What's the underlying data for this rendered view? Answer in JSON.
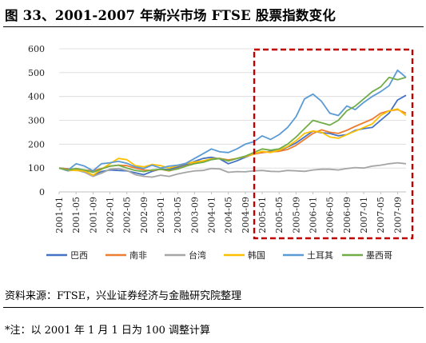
{
  "title": "图 33、2001-2007 年新兴市场 FTSE 股票指数变化",
  "source": "资料来源：FTSE，兴业证券经济与金融研究院整理",
  "note": "*注：以 2001 年 1 月 1 日为 100 调整计算",
  "colors": {
    "highlight_box": "#c00000",
    "gridline": "#d9d9d9"
  },
  "chart_data": {
    "type": "line",
    "title": "",
    "xlabel": "",
    "ylabel": "",
    "ylim": [
      0,
      600
    ],
    "yticks": [
      0,
      100,
      200,
      300,
      400,
      500,
      600
    ],
    "grid": "horizontal",
    "legend_position": "bottom",
    "x": [
      "2001-01",
      "2001-03",
      "2001-05",
      "2001-07",
      "2001-09",
      "2001-11",
      "2002-01",
      "2002-03",
      "2002-05",
      "2002-07",
      "2002-09",
      "2002-11",
      "2003-01",
      "2003-03",
      "2003-05",
      "2003-07",
      "2003-09",
      "2003-11",
      "2004-01",
      "2004-03",
      "2004-05",
      "2004-07",
      "2004-09",
      "2004-11",
      "2005-01",
      "2005-03",
      "2005-05",
      "2005-07",
      "2005-09",
      "2005-11",
      "2006-01",
      "2006-03",
      "2006-05",
      "2006-07",
      "2006-09",
      "2006-11",
      "2007-01",
      "2007-03",
      "2007-05",
      "2007-07",
      "2007-09",
      "2007-11"
    ],
    "xtick_labels": [
      "2001-01",
      "2001-05",
      "2001-09",
      "2002-01",
      "2002-05",
      "2002-09",
      "2003-01",
      "2003-05",
      "2003-09",
      "2004-01",
      "2004-05",
      "2004-09",
      "2005-01",
      "2005-05",
      "2005-09",
      "2006-01",
      "2006-05",
      "2006-09",
      "2007-01",
      "2007-05",
      "2007-09"
    ],
    "highlight_range": [
      "2005-01",
      "2007-11"
    ],
    "series": [
      {
        "name": "巴西",
        "color": "#4472c4",
        "values": [
          100,
          97,
          92,
          88,
          70,
          85,
          92,
          90,
          88,
          80,
          72,
          86,
          96,
          94,
          104,
          115,
          128,
          140,
          145,
          138,
          118,
          130,
          145,
          160,
          165,
          170,
          172,
          188,
          205,
          230,
          255,
          248,
          245,
          235,
          240,
          258,
          265,
          270,
          300,
          330,
          385,
          405
        ]
      },
      {
        "name": "南非",
        "color": "#ed7d31",
        "values": [
          100,
          96,
          95,
          92,
          88,
          98,
          108,
          112,
          110,
          100,
          92,
          90,
          95,
          88,
          98,
          110,
          120,
          128,
          138,
          140,
          134,
          140,
          148,
          158,
          165,
          168,
          170,
          178,
          195,
          220,
          245,
          260,
          250,
          245,
          258,
          275,
          290,
          305,
          330,
          340,
          345,
          330
        ]
      },
      {
        "name": "台湾",
        "color": "#a5a5a5",
        "values": [
          100,
          88,
          92,
          82,
          65,
          78,
          95,
          98,
          90,
          72,
          65,
          62,
          70,
          65,
          75,
          82,
          88,
          90,
          98,
          96,
          82,
          85,
          84,
          88,
          90,
          86,
          85,
          90,
          88,
          86,
          92,
          95,
          95,
          92,
          98,
          102,
          100,
          108,
          112,
          118,
          122,
          118
        ]
      },
      {
        "name": "韩国",
        "color": "#ffc000",
        "values": [
          100,
          92,
          90,
          88,
          70,
          95,
          118,
          140,
          135,
          110,
          105,
          115,
          110,
          100,
          110,
          120,
          125,
          130,
          138,
          140,
          130,
          140,
          148,
          160,
          170,
          165,
          175,
          190,
          215,
          245,
          255,
          250,
          230,
          225,
          240,
          255,
          270,
          285,
          320,
          340,
          348,
          320
        ]
      },
      {
        "name": "土耳其",
        "color": "#5b9bd5",
        "values": [
          100,
          90,
          118,
          108,
          88,
          118,
          122,
          128,
          120,
          105,
          98,
          112,
          100,
          108,
          112,
          120,
          140,
          160,
          180,
          168,
          165,
          180,
          200,
          210,
          235,
          220,
          240,
          270,
          315,
          390,
          410,
          380,
          330,
          320,
          360,
          345,
          375,
          400,
          420,
          445,
          510,
          480
        ]
      },
      {
        "name": "墨西哥",
        "color": "#70ad47",
        "values": [
          100,
          92,
          98,
          92,
          82,
          96,
          108,
          112,
          100,
          90,
          85,
          92,
          95,
          90,
          96,
          108,
          118,
          124,
          135,
          140,
          130,
          140,
          150,
          165,
          180,
          175,
          180,
          200,
          230,
          265,
          300,
          290,
          280,
          300,
          340,
          360,
          390,
          420,
          440,
          480,
          470,
          480
        ]
      }
    ]
  }
}
